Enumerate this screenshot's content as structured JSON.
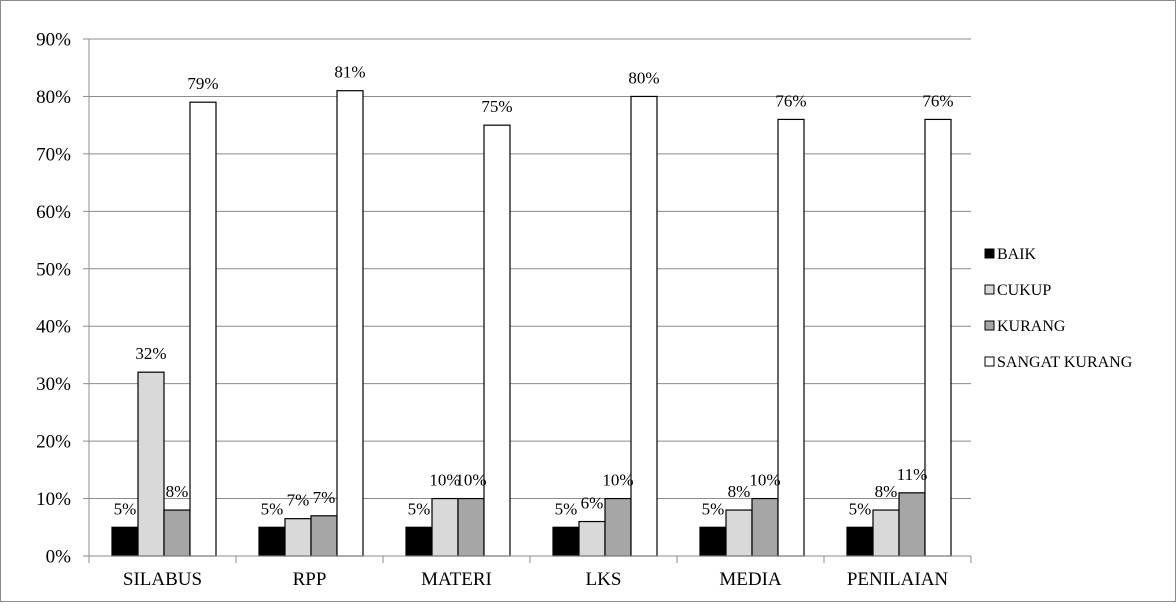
{
  "chart_data": {
    "type": "bar",
    "title": "",
    "xlabel": "",
    "ylabel": "",
    "ylim": [
      0,
      90
    ],
    "y_ticks": [
      "0%",
      "10%",
      "20%",
      "30%",
      "40%",
      "50%",
      "60%",
      "70%",
      "80%",
      "90%"
    ],
    "y_tick_values": [
      0,
      10,
      20,
      30,
      40,
      50,
      60,
      70,
      80,
      90
    ],
    "grid": true,
    "legend_position": "right",
    "categories": [
      "SILABUS",
      "RPP",
      "MATERI",
      "LKS",
      "MEDIA",
      "PENILAIAN"
    ],
    "series": [
      {
        "name": "BAIK",
        "color": "#000000",
        "values": [
          5,
          5,
          5,
          5,
          5,
          5
        ],
        "labels": [
          "5%",
          "5%",
          "5%",
          "5%",
          "5%",
          "5%"
        ]
      },
      {
        "name": "CUKUP",
        "color": "#d9d9d9",
        "values": [
          32,
          6.5,
          10,
          6,
          8,
          8
        ],
        "labels": [
          "32%",
          "7%",
          "10%",
          "6%",
          "8%",
          "8%"
        ]
      },
      {
        "name": "KURANG",
        "color": "#a6a6a6",
        "values": [
          8,
          7,
          10,
          10,
          10,
          11
        ],
        "labels": [
          "8%",
          "7%",
          "10%",
          "10%",
          "10%",
          "11%"
        ]
      },
      {
        "name": "SANGAT KURANG",
        "color": "#ffffff",
        "values": [
          79,
          81,
          75,
          80,
          76,
          76
        ],
        "labels": [
          "79%",
          "81%",
          "75%",
          "80%",
          "76%",
          "76%"
        ]
      }
    ]
  }
}
